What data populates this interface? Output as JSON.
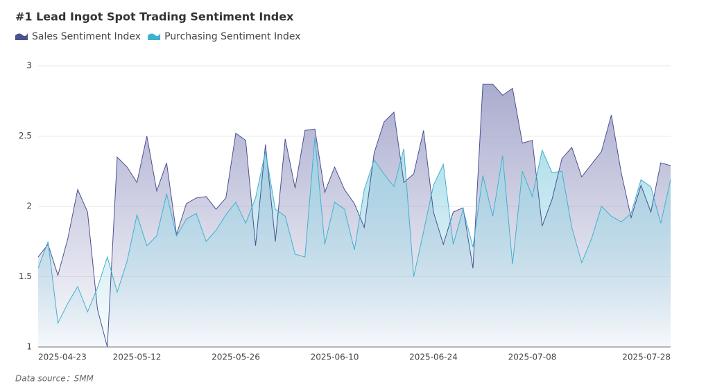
{
  "chart_data": {
    "type": "area",
    "title": "#1 Lead Ingot Spot Trading Sentiment Index",
    "source": "Data source：SMM",
    "categories": [
      "2025-04-23",
      null,
      null,
      null,
      null,
      null,
      null,
      null,
      null,
      null,
      "2025-05-12",
      null,
      null,
      null,
      null,
      null,
      null,
      null,
      null,
      null,
      "2025-05-26",
      null,
      null,
      null,
      null,
      null,
      null,
      null,
      null,
      null,
      "2025-06-10",
      null,
      null,
      null,
      null,
      null,
      null,
      null,
      null,
      null,
      "2025-06-24",
      null,
      null,
      null,
      null,
      null,
      null,
      null,
      null,
      null,
      "2025-07-08",
      null,
      null,
      null,
      null,
      null,
      null,
      null,
      null,
      null,
      null,
      null,
      null,
      null,
      "2025-07-28"
    ],
    "series": [
      {
        "name": "Sales Sentiment Index",
        "color": "#4a5190",
        "fill": "#a6a8cc",
        "values": [
          1.64,
          1.73,
          1.51,
          1.77,
          2.12,
          1.96,
          1.27,
          1.0,
          2.35,
          2.28,
          2.17,
          2.5,
          2.11,
          2.31,
          1.8,
          2.02,
          2.06,
          2.07,
          1.98,
          2.06,
          2.52,
          2.47,
          1.72,
          2.44,
          1.75,
          2.48,
          2.13,
          2.54,
          2.55,
          2.1,
          2.28,
          2.12,
          2.02,
          1.85,
          2.38,
          2.6,
          2.67,
          2.17,
          2.23,
          2.54,
          1.96,
          1.73,
          1.96,
          1.99,
          1.56,
          2.87,
          2.87,
          2.79,
          2.84,
          2.45,
          2.47,
          1.86,
          2.05,
          2.34,
          2.42,
          2.21,
          2.3,
          2.39,
          2.65,
          2.24,
          1.92,
          2.15,
          1.96,
          2.31,
          2.29
        ]
      },
      {
        "name": "Purchasing Sentiment Index",
        "color": "#3fb1d0",
        "fill": "#9fd8e6",
        "values": [
          1.56,
          1.75,
          1.17,
          1.31,
          1.43,
          1.25,
          1.42,
          1.64,
          1.39,
          1.61,
          1.94,
          1.72,
          1.79,
          2.09,
          1.79,
          1.91,
          1.95,
          1.75,
          1.83,
          1.94,
          2.03,
          1.88,
          2.06,
          2.39,
          1.98,
          1.93,
          1.66,
          1.64,
          2.49,
          1.73,
          2.03,
          1.98,
          1.69,
          2.12,
          2.33,
          2.23,
          2.14,
          2.41,
          1.5,
          1.82,
          2.15,
          2.3,
          1.73,
          1.98,
          1.71,
          2.22,
          1.93,
          2.36,
          1.59,
          2.25,
          2.07,
          2.4,
          2.24,
          2.25,
          1.85,
          1.6,
          1.77,
          2.0,
          1.93,
          1.89,
          1.95,
          2.19,
          2.14,
          1.88,
          2.19
        ]
      }
    ],
    "ylim": [
      1,
      3
    ],
    "yticks": [
      1,
      1.5,
      2,
      2.5,
      3
    ],
    "grid": true,
    "legend": "top-left"
  }
}
